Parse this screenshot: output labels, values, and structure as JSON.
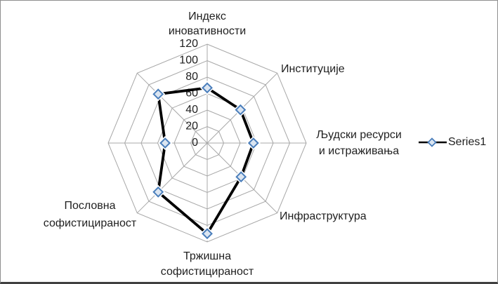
{
  "chart_data": {
    "type": "radar",
    "title": "",
    "categories": [
      "Индекс иновативности",
      "Институције",
      "Људски ресурси и истраживања",
      "Инфраструктура",
      "Тржишна софистицираност",
      "Пословна софистицираност",
      "",
      ""
    ],
    "series": [
      {
        "name": "Series1",
        "values": [
          67,
          57,
          56,
          58,
          110,
          84,
          51,
          84
        ]
      }
    ],
    "axis": {
      "min": 0,
      "max": 120,
      "step": 20,
      "tick_labels": [
        "0",
        "20",
        "40",
        "60",
        "80",
        "100",
        "120"
      ]
    },
    "legend": {
      "position": "right",
      "entries": [
        "Series1"
      ]
    },
    "grid": true,
    "colors": {
      "grid": "#a8a8a8",
      "line": "#000000",
      "marker_fill": "#dbe5f1",
      "marker_stroke": "#4a7ebb",
      "text": "#1f1f1f",
      "frame_border": "#8f8f8f",
      "frame_border_bottom": "#404040"
    }
  }
}
